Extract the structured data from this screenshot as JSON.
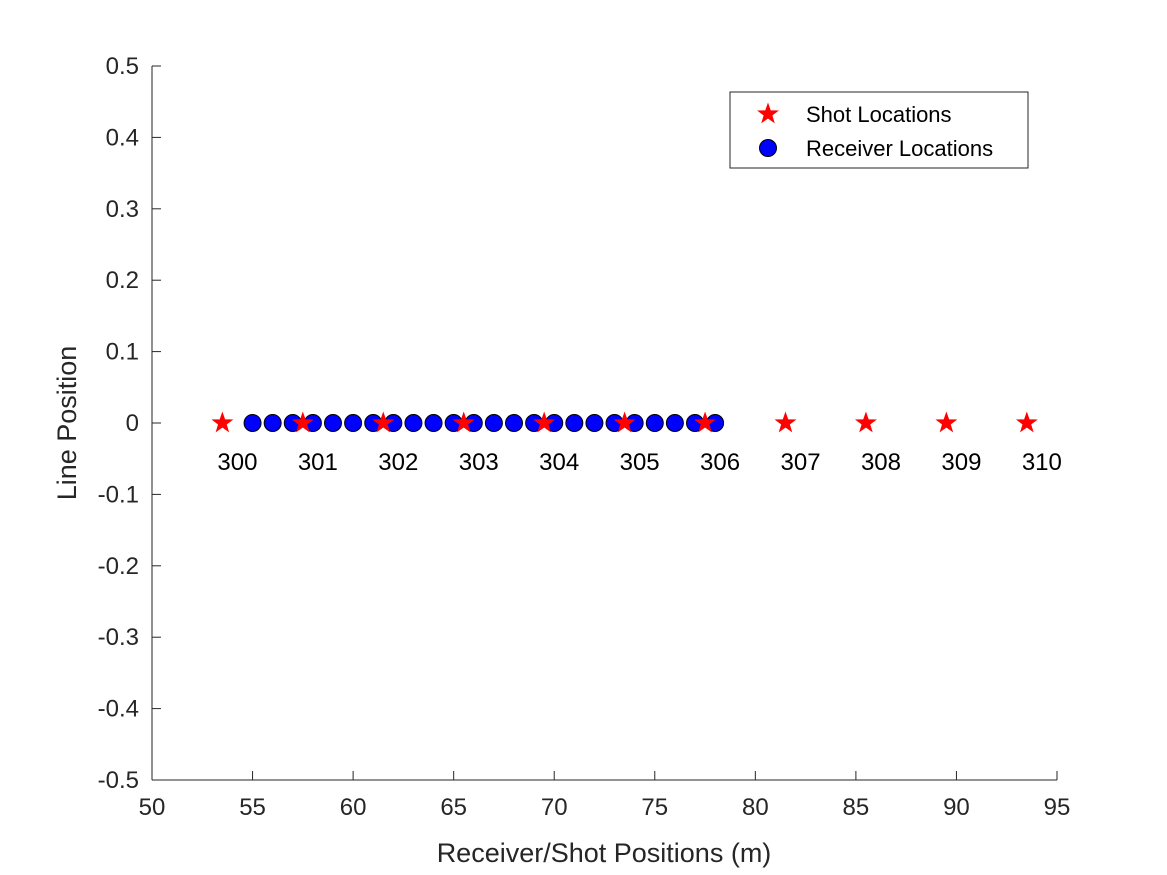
{
  "chart_data": {
    "type": "scatter",
    "title": "",
    "xlabel": "Receiver/Shot Positions (m)",
    "ylabel": "Line Position",
    "xlim": [
      50,
      95
    ],
    "ylim": [
      -0.5,
      0.5
    ],
    "xticks": [
      "50",
      "55",
      "60",
      "65",
      "70",
      "75",
      "80",
      "85",
      "90",
      "95"
    ],
    "yticks": [
      "-0.5",
      "-0.4",
      "-0.3",
      "-0.2",
      "-0.1",
      "0",
      "0.1",
      "0.2",
      "0.3",
      "0.4",
      "0.5"
    ],
    "grid": false,
    "legend_position": "top-right",
    "series": [
      {
        "name": "Shot Locations",
        "marker": "star",
        "color": "#ff0000",
        "x": [
          53.5,
          57.5,
          61.5,
          65.5,
          69.5,
          73.5,
          77.5,
          81.5,
          85.5,
          89.5,
          93.5
        ],
        "y": [
          0,
          0,
          0,
          0,
          0,
          0,
          0,
          0,
          0,
          0,
          0
        ],
        "labels": [
          "300",
          "301",
          "302",
          "303",
          "304",
          "305",
          "306",
          "307",
          "308",
          "309",
          "310"
        ]
      },
      {
        "name": "Receiver Locations",
        "marker": "circle",
        "color": "#0000ff",
        "x": [
          55,
          56,
          57,
          58,
          59,
          60,
          61,
          62,
          63,
          64,
          65,
          66,
          67,
          68,
          69,
          70,
          71,
          72,
          73,
          74,
          75,
          76,
          77,
          78
        ],
        "y": [
          0,
          0,
          0,
          0,
          0,
          0,
          0,
          0,
          0,
          0,
          0,
          0,
          0,
          0,
          0,
          0,
          0,
          0,
          0,
          0,
          0,
          0,
          0,
          0
        ]
      }
    ]
  }
}
